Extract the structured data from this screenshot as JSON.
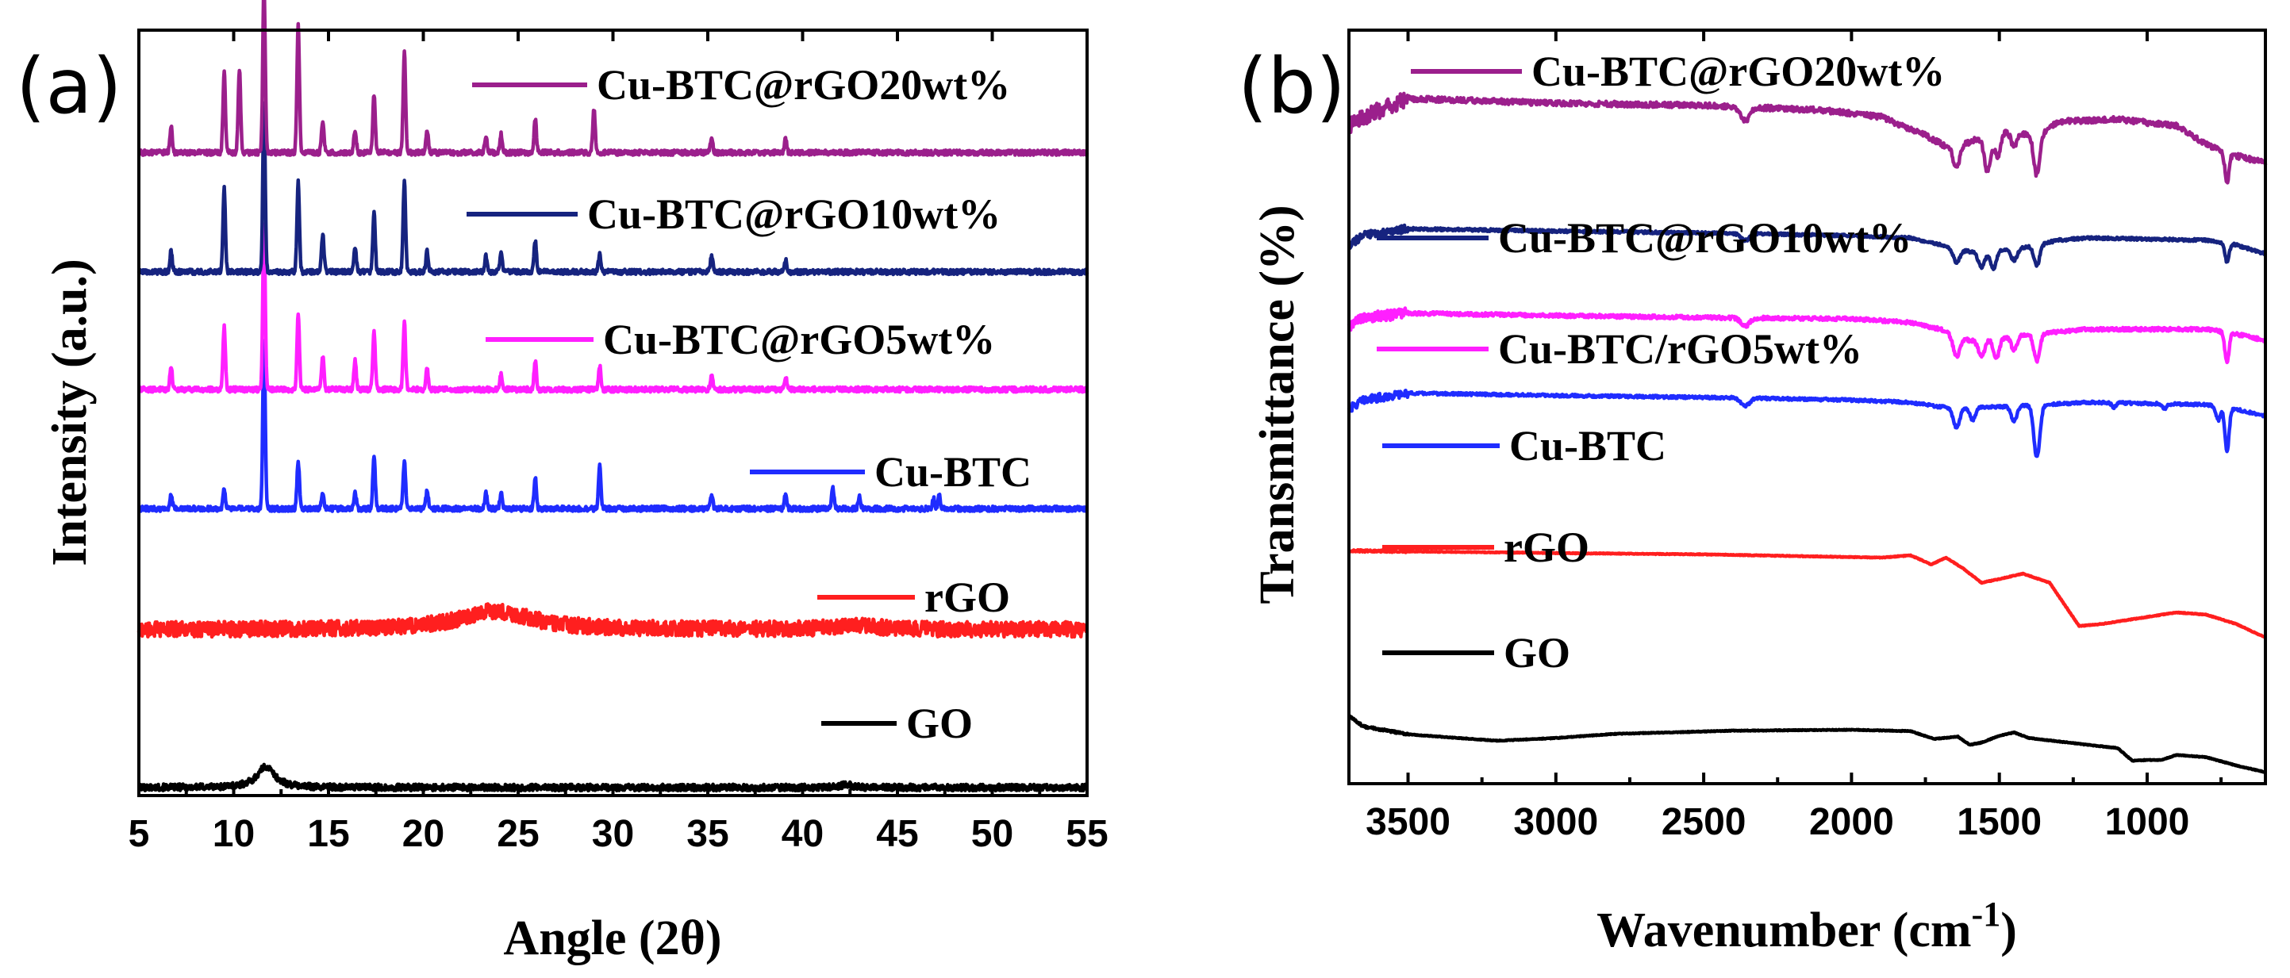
{
  "figure": {
    "panel_a_label": "(a)",
    "panel_b_label": "(b)"
  },
  "colors": {
    "purple": "#9b1f8c",
    "navy": "#16237f",
    "magenta": "#ff1fff",
    "blue": "#1f2cff",
    "red": "#ff1f1f",
    "black": "#000000"
  },
  "chart_data": [
    {
      "type": "line",
      "panel": "(a)",
      "title": "",
      "xlabel": "Angle (2θ)",
      "ylabel": "Intensity (a.u.)",
      "xlim": [
        5,
        55
      ],
      "xticks": [
        5,
        10,
        15,
        20,
        25,
        30,
        35,
        40,
        45,
        50,
        55
      ],
      "yticks": [],
      "legend_placement": "inline-right",
      "series": [
        {
          "name": "GO",
          "color": "black",
          "baseline": 0.0,
          "noise": 0.0025,
          "broad": [
            [
              11.7,
              0.13,
              0.55
            ],
            [
              42.3,
              0.018,
              0.35
            ]
          ],
          "peaks": []
        },
        {
          "name": "rGO",
          "color": "red",
          "baseline": 0.98,
          "noise": 0.006,
          "broad": [
            [
              23.8,
              0.115,
              2.3
            ],
            [
              42.8,
              0.026,
              1.3
            ]
          ],
          "peaks": []
        },
        {
          "name": "Cu-BTC",
          "color": "blue",
          "baseline": 1.73,
          "noise": 0.002,
          "broad": [],
          "peaks": [
            [
              6.7,
              0.01
            ],
            [
              9.5,
              0.016
            ],
            [
              11.6,
              0.131
            ],
            [
              13.4,
              0.037
            ],
            [
              14.7,
              0.012
            ],
            [
              16.4,
              0.012
            ],
            [
              17.4,
              0.041
            ],
            [
              19.0,
              0.036
            ],
            [
              20.2,
              0.014
            ],
            [
              23.3,
              0.012
            ],
            [
              24.1,
              0.012
            ],
            [
              25.9,
              0.024
            ],
            [
              29.3,
              0.034
            ],
            [
              35.2,
              0.01
            ],
            [
              39.1,
              0.012
            ],
            [
              41.6,
              0.016
            ],
            [
              43.0,
              0.009
            ],
            [
              46.9,
              0.008
            ],
            [
              47.2,
              0.01
            ]
          ]
        },
        {
          "name": "Cu-BTC@rGO5wt%",
          "color": "magenta",
          "baseline": 2.47,
          "noise": 0.002,
          "broad": [],
          "peaks": [
            [
              6.7,
              0.018
            ],
            [
              9.5,
              0.05
            ],
            [
              11.6,
              0.13
            ],
            [
              13.4,
              0.06
            ],
            [
              14.7,
              0.025
            ],
            [
              16.4,
              0.022
            ],
            [
              17.4,
              0.045
            ],
            [
              19.0,
              0.052
            ],
            [
              20.2,
              0.016
            ],
            [
              24.1,
              0.012
            ],
            [
              25.9,
              0.022
            ],
            [
              29.3,
              0.018
            ],
            [
              35.2,
              0.01
            ],
            [
              39.1,
              0.01
            ]
          ]
        },
        {
          "name": "Cu-BTC@rGO10wt%",
          "color": "navy",
          "baseline": 3.2,
          "noise": 0.002,
          "broad": [],
          "peaks": [
            [
              6.7,
              0.016
            ],
            [
              9.5,
              0.065
            ],
            [
              11.6,
              0.13
            ],
            [
              13.4,
              0.07
            ],
            [
              14.7,
              0.03
            ],
            [
              16.4,
              0.02
            ],
            [
              17.4,
              0.045
            ],
            [
              19.0,
              0.07
            ],
            [
              20.2,
              0.016
            ],
            [
              23.3,
              0.012
            ],
            [
              24.1,
              0.014
            ],
            [
              25.9,
              0.024
            ],
            [
              29.3,
              0.014
            ],
            [
              35.2,
              0.012
            ],
            [
              39.1,
              0.01
            ]
          ]
        },
        {
          "name": "Cu-BTC@rGO20wt%",
          "color": "purple",
          "baseline": 3.94,
          "noise": 0.002,
          "broad": [],
          "peaks": [
            [
              6.7,
              0.02
            ],
            [
              9.5,
              0.065
            ],
            [
              10.3,
              0.065
            ],
            [
              11.6,
              0.131
            ],
            [
              13.4,
              0.1
            ],
            [
              14.7,
              0.025
            ],
            [
              16.4,
              0.018
            ],
            [
              17.4,
              0.045
            ],
            [
              19.0,
              0.078
            ],
            [
              20.2,
              0.016
            ],
            [
              23.3,
              0.012
            ],
            [
              24.1,
              0.014
            ],
            [
              25.9,
              0.026
            ],
            [
              29.0,
              0.034
            ],
            [
              35.2,
              0.01
            ],
            [
              39.1,
              0.01
            ]
          ]
        }
      ]
    },
    {
      "type": "line",
      "panel": "(b)",
      "title": "",
      "xlabel": "Wavenumber (cm",
      "xlabel_superscript": "-1",
      "xlabel_tail": ")",
      "ylabel": "Transmittance (%)",
      "xlim": [
        3700,
        600
      ],
      "xticks": [
        3500,
        3000,
        2500,
        2000,
        1500,
        1000
      ],
      "yticks": [],
      "legend_placement": "inline-left",
      "series": [
        {
          "name": "GO",
          "color": "black",
          "baseline": 0.0,
          "noise": 0.0008,
          "segments": [
            [
              3700,
              0.118
            ],
            [
              3650,
              0.095
            ],
            [
              3500,
              0.078
            ],
            [
              3200,
              0.064
            ],
            [
              3000,
              0.07
            ],
            [
              2800,
              0.079
            ],
            [
              2400,
              0.086
            ],
            [
              2000,
              0.088
            ],
            [
              1800,
              0.085
            ],
            [
              1720,
              0.068
            ],
            [
              1640,
              0.073
            ],
            [
              1600,
              0.055
            ],
            [
              1560,
              0.06
            ],
            [
              1500,
              0.075
            ],
            [
              1450,
              0.082
            ],
            [
              1400,
              0.07
            ],
            [
              1200,
              0.055
            ],
            [
              1100,
              0.048
            ],
            [
              1050,
              0.02
            ],
            [
              1000,
              0.022
            ],
            [
              950,
              0.022
            ],
            [
              900,
              0.033
            ],
            [
              800,
              0.028
            ],
            [
              700,
              0.01
            ],
            [
              600,
              -0.005
            ]
          ],
          "dips": []
        },
        {
          "name": "rGO",
          "color": "red",
          "baseline": 0.42,
          "noise": 0.0008,
          "segments": [
            [
              3700,
              0.48
            ],
            [
              3000,
              0.475
            ],
            [
              2500,
              0.472
            ],
            [
              1900,
              0.465
            ],
            [
              1800,
              0.47
            ],
            [
              1730,
              0.45
            ],
            [
              1680,
              0.465
            ],
            [
              1620,
              0.44
            ],
            [
              1560,
              0.41
            ],
            [
              1500,
              0.418
            ],
            [
              1420,
              0.43
            ],
            [
              1330,
              0.41
            ],
            [
              1230,
              0.315
            ],
            [
              1150,
              0.32
            ],
            [
              1000,
              0.335
            ],
            [
              900,
              0.345
            ],
            [
              800,
              0.34
            ],
            [
              700,
              0.32
            ],
            [
              600,
              0.29
            ]
          ],
          "dips": []
        },
        {
          "name": "Cu-BTC",
          "color": "blue",
          "baseline": 0.78,
          "noise": 0.003,
          "segments": [
            [
              3700,
              0.79
            ],
            [
              3650,
              0.81
            ],
            [
              3500,
              0.825
            ],
            [
              3000,
              0.82
            ],
            [
              2400,
              0.815
            ],
            [
              2000,
              0.81
            ],
            [
              1800,
              0.805
            ],
            [
              1700,
              0.795
            ],
            [
              1500,
              0.795
            ],
            [
              1200,
              0.805
            ],
            [
              800,
              0.8
            ],
            [
              700,
              0.79
            ],
            [
              600,
              0.775
            ]
          ],
          "dips": [
            [
              2360,
              0.018,
              20
            ],
            [
              1645,
              0.045,
              16
            ],
            [
              1590,
              0.028,
              14
            ],
            [
              1450,
              0.032,
              14
            ],
            [
              1373,
              0.115,
              14
            ],
            [
              1112,
              0.01,
              10
            ],
            [
              940,
              0.01,
              10
            ],
            [
              760,
              0.03,
              10
            ],
            [
              730,
              0.095,
              10
            ]
          ]
        },
        {
          "name": "Cu-BTC/rGO5wt%",
          "color": "magenta",
          "baseline": 0.96,
          "noise": 0.004,
          "segments": [
            [
              3700,
              0.97
            ],
            [
              3650,
              0.99
            ],
            [
              3500,
              1.0
            ],
            [
              3000,
              0.995
            ],
            [
              2400,
              0.99
            ],
            [
              2000,
              0.988
            ],
            [
              1800,
              0.98
            ],
            [
              1700,
              0.965
            ],
            [
              1600,
              0.94
            ],
            [
              1450,
              0.95
            ],
            [
              1300,
              0.96
            ],
            [
              1200,
              0.965
            ],
            [
              800,
              0.965
            ],
            [
              700,
              0.955
            ],
            [
              600,
              0.94
            ]
          ],
          "dips": [
            [
              2360,
              0.018,
              20
            ],
            [
              1645,
              0.045,
              16
            ],
            [
              1560,
              0.035,
              16
            ],
            [
              1510,
              0.045,
              14
            ],
            [
              1450,
              0.03,
              14
            ],
            [
              1373,
              0.06,
              14
            ],
            [
              730,
              0.065,
              10
            ]
          ]
        },
        {
          "name": "Cu-BTC@rGO10wt%",
          "color": "navy",
          "baseline": 1.14,
          "noise": 0.003,
          "segments": [
            [
              3700,
              1.15
            ],
            [
              3650,
              1.17
            ],
            [
              3500,
              1.185
            ],
            [
              3000,
              1.18
            ],
            [
              2400,
              1.175
            ],
            [
              2000,
              1.17
            ],
            [
              1800,
              1.165
            ],
            [
              1700,
              1.15
            ],
            [
              1600,
              1.135
            ],
            [
              1450,
              1.14
            ],
            [
              1300,
              1.16
            ],
            [
              1200,
              1.165
            ],
            [
              800,
              1.16
            ],
            [
              700,
              1.15
            ],
            [
              600,
              1.13
            ]
          ],
          "dips": [
            [
              2360,
              0.015,
              20
            ],
            [
              1645,
              0.03,
              16
            ],
            [
              1560,
              0.035,
              16
            ],
            [
              1520,
              0.04,
              14
            ],
            [
              1450,
              0.025,
              14
            ],
            [
              1373,
              0.045,
              14
            ],
            [
              730,
              0.04,
              10
            ]
          ]
        },
        {
          "name": "Cu-BTC@rGO20wt%",
          "color": "purple",
          "baseline": 1.4,
          "noise": 0.006,
          "segments": [
            [
              3700,
              1.41
            ],
            [
              3650,
              1.43
            ],
            [
              3500,
              1.47
            ],
            [
              3000,
              1.46
            ],
            [
              2500,
              1.455
            ],
            [
              2100,
              1.445
            ],
            [
              1900,
              1.43
            ],
            [
              1750,
              1.39
            ],
            [
              1680,
              1.365
            ],
            [
              1600,
              1.375
            ],
            [
              1550,
              1.39
            ],
            [
              1450,
              1.4
            ],
            [
              1380,
              1.385
            ],
            [
              1300,
              1.42
            ],
            [
              1100,
              1.425
            ],
            [
              900,
              1.41
            ],
            [
              800,
              1.37
            ],
            [
              700,
              1.345
            ],
            [
              600,
              1.33
            ]
          ],
          "dips": [
            [
              2360,
              0.03,
              20
            ],
            [
              1645,
              0.05,
              16
            ],
            [
              1540,
              0.08,
              16
            ],
            [
              1505,
              0.05,
              14
            ],
            [
              1450,
              0.035,
              14
            ],
            [
              1373,
              0.085,
              14
            ],
            [
              730,
              0.065,
              10
            ]
          ]
        }
      ]
    }
  ]
}
